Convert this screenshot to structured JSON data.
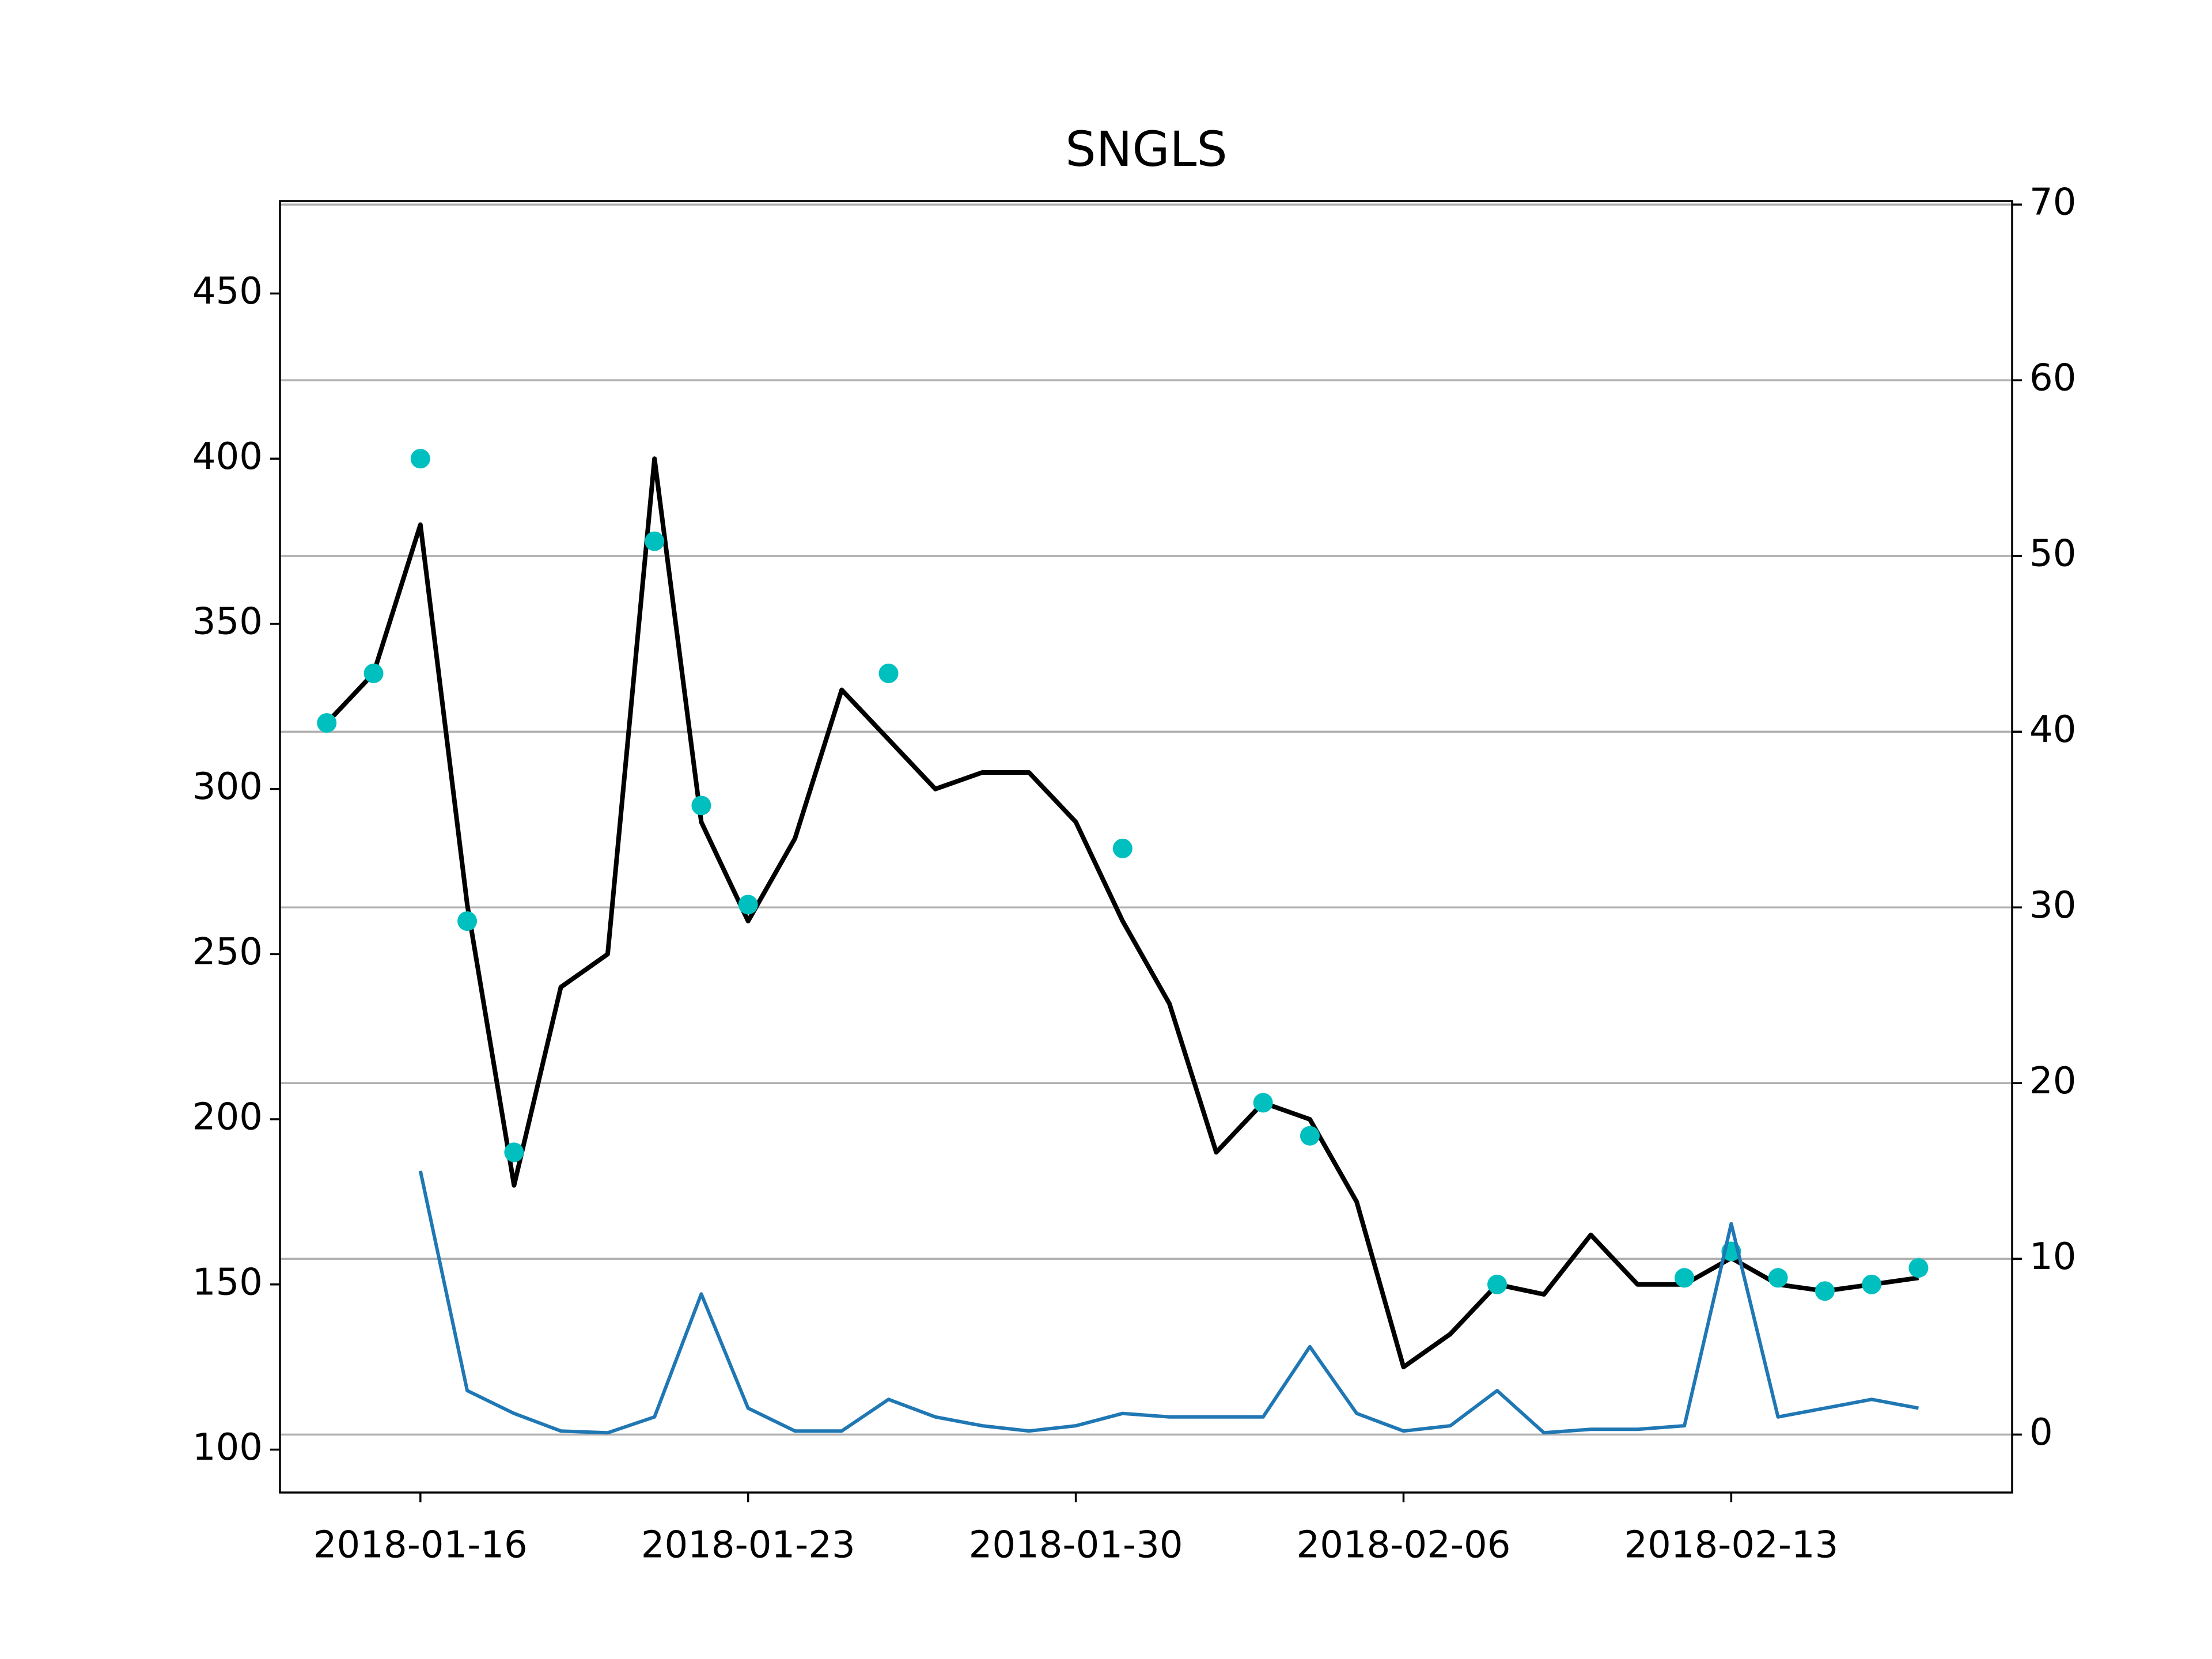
{
  "chart_data": {
    "type": "line",
    "title": "SNGLS",
    "xlim": [
      "2018-01-13",
      "2018-02-19"
    ],
    "xticks": [
      "2018-01-16",
      "2018-01-23",
      "2018-01-30",
      "2018-02-06",
      "2018-02-13"
    ],
    "ylim": [
      87,
      478
    ],
    "yticks": [
      100,
      150,
      200,
      250,
      300,
      350,
      400,
      450
    ],
    "y2lim": [
      -3.3,
      70.2
    ],
    "y2ticks": [
      0,
      10,
      20,
      30,
      40,
      50,
      60,
      70
    ],
    "grid_axis": "y2",
    "series": [
      {
        "type": "line",
        "color": "#000000",
        "x": [
          "2018-01-14",
          "2018-01-15",
          "2018-01-16",
          "2018-01-17",
          "2018-01-18",
          "2018-01-19",
          "2018-01-20",
          "2018-01-21",
          "2018-01-22",
          "2018-01-23",
          "2018-01-24",
          "2018-01-25",
          "2018-01-26",
          "2018-01-27",
          "2018-01-28",
          "2018-01-29",
          "2018-01-30",
          "2018-01-31",
          "2018-02-01",
          "2018-02-02",
          "2018-02-03",
          "2018-02-04",
          "2018-02-05",
          "2018-02-06",
          "2018-02-07",
          "2018-02-08",
          "2018-02-09",
          "2018-02-10",
          "2018-02-11",
          "2018-02-12",
          "2018-02-13",
          "2018-02-14",
          "2018-02-15",
          "2018-02-16",
          "2018-02-17"
        ],
        "values": [
          320,
          335,
          380,
          265,
          180,
          240,
          250,
          400,
          290,
          260,
          285,
          330,
          315,
          300,
          305,
          305,
          290,
          260,
          235,
          190,
          205,
          200,
          175,
          125,
          135,
          150,
          147,
          165,
          150,
          150,
          158,
          150,
          148,
          150,
          152
        ]
      },
      {
        "type": "scatter",
        "color": "#00bfbf",
        "x": [
          "2018-01-14",
          "2018-01-15",
          "2018-01-16",
          "2018-01-17",
          "2018-01-18",
          "2018-01-21",
          "2018-01-22",
          "2018-01-23",
          "2018-01-26",
          "2018-01-31",
          "2018-02-03",
          "2018-02-04",
          "2018-02-08",
          "2018-02-12",
          "2018-02-13",
          "2018-02-14",
          "2018-02-15",
          "2018-02-16",
          "2018-02-17"
        ],
        "values": [
          320,
          335,
          400,
          260,
          190,
          375,
          295,
          265,
          335,
          282,
          205,
          195,
          150,
          152,
          160,
          152,
          148,
          150,
          155
        ]
      },
      {
        "type": "line",
        "color": "#1f77b4",
        "axis": "y2",
        "x": [
          "2018-01-16",
          "2018-01-17",
          "2018-01-18",
          "2018-01-19",
          "2018-01-20",
          "2018-01-21",
          "2018-01-22",
          "2018-01-23",
          "2018-01-24",
          "2018-01-25",
          "2018-01-26",
          "2018-01-27",
          "2018-01-28",
          "2018-01-29",
          "2018-01-30",
          "2018-01-31",
          "2018-02-01",
          "2018-02-02",
          "2018-02-03",
          "2018-02-04",
          "2018-02-05",
          "2018-02-06",
          "2018-02-07",
          "2018-02-08",
          "2018-02-09",
          "2018-02-10",
          "2018-02-11",
          "2018-02-12",
          "2018-02-13",
          "2018-02-14",
          "2018-02-15",
          "2018-02-16",
          "2018-02-17"
        ],
        "values": [
          15,
          2.5,
          1.2,
          0.2,
          0.1,
          1,
          8,
          1.5,
          0.2,
          0.2,
          2,
          1,
          0.5,
          0.2,
          0.5,
          1.2,
          1,
          1,
          1,
          5,
          1.2,
          0.2,
          0.5,
          2.5,
          0.1,
          0.3,
          0.3,
          0.5,
          12,
          1,
          1.5,
          2,
          1.5
        ]
      }
    ]
  }
}
